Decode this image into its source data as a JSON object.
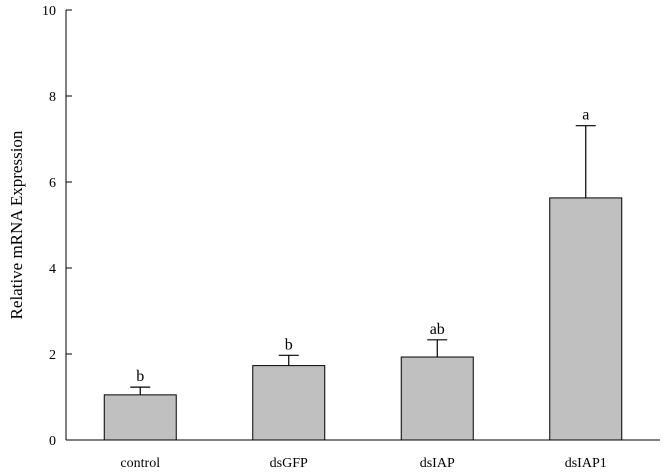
{
  "chart_data": {
    "type": "bar",
    "title": "",
    "xlabel": "",
    "ylabel": "Relative mRNA Expression",
    "ylim": [
      0,
      10
    ],
    "yticks": [
      0,
      2,
      4,
      6,
      8,
      10
    ],
    "categories": [
      "control",
      "dsGFP",
      "dsIAP",
      "dsIAP1"
    ],
    "values": [
      1.05,
      1.73,
      1.93,
      5.63
    ],
    "errors": [
      0.18,
      0.24,
      0.4,
      1.68
    ],
    "significance": [
      "b",
      "b",
      "ab",
      "a"
    ],
    "grid": false,
    "bar_color": "#c0c0c0",
    "edge_color": "#000000"
  }
}
